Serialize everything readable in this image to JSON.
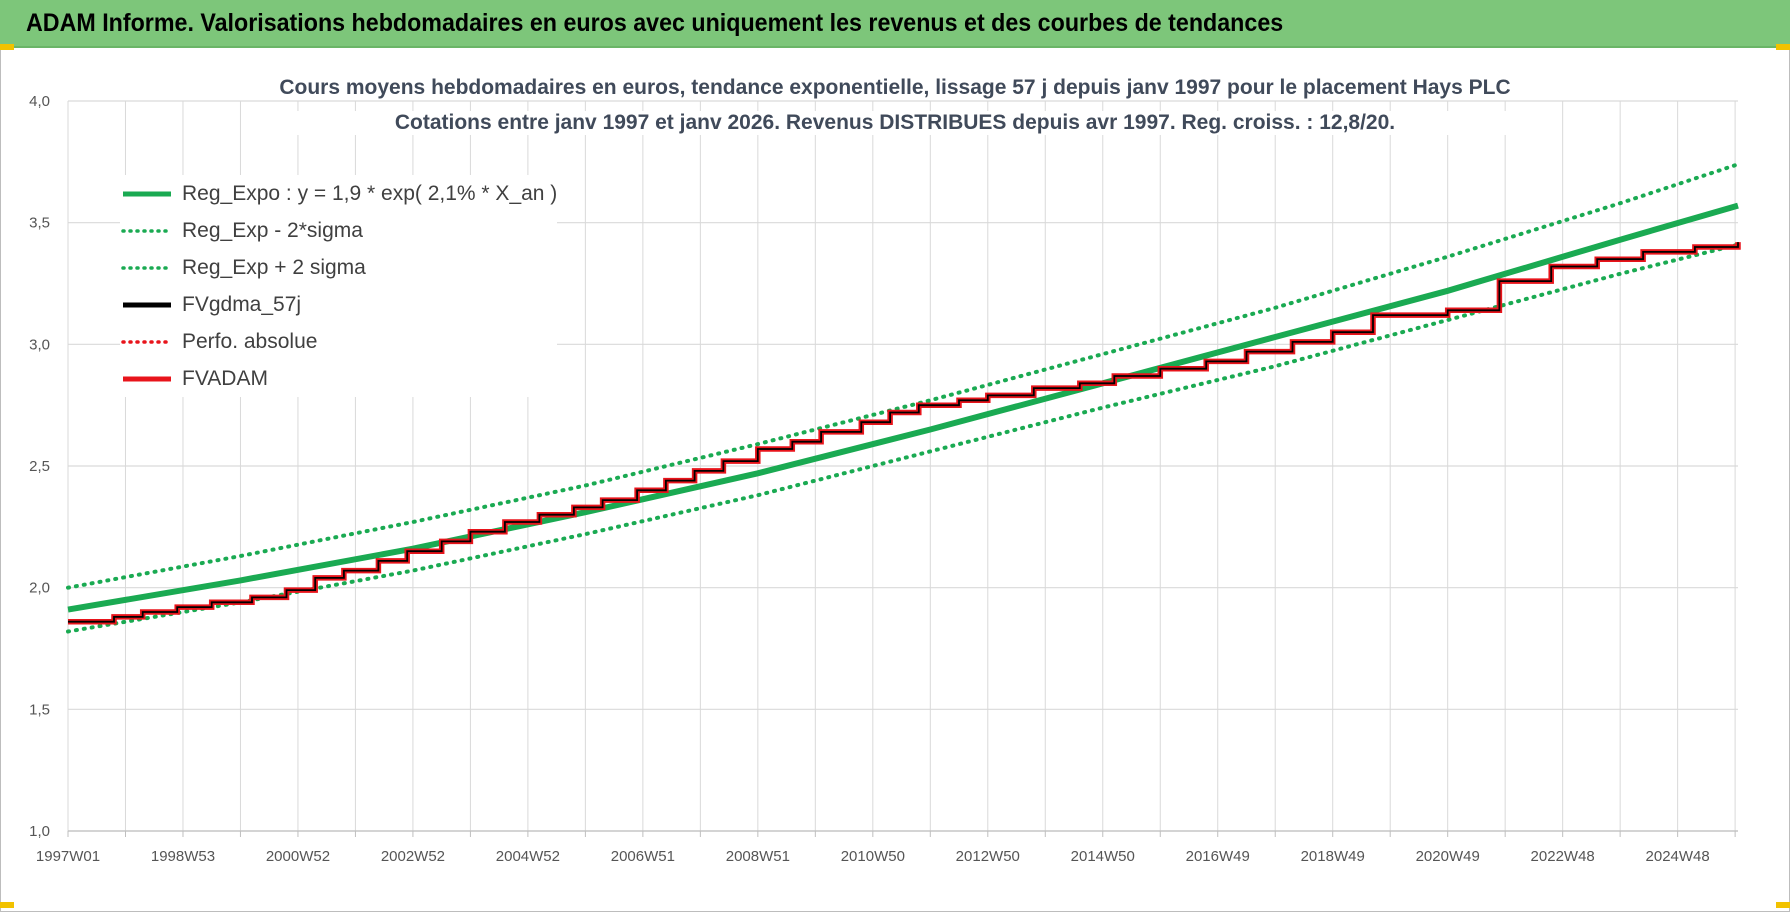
{
  "header": {
    "title": "ADAM Informe. Valorisations hebdomadaires en euros avec uniquement les revenus et des courbes de tendances"
  },
  "colors": {
    "banner": "#7dc67a",
    "trend_green": "#1aaa52",
    "adam_red": "#e8141b",
    "gdma_black": "#000000",
    "grid": "#d9d9d9"
  },
  "chart_data": {
    "type": "line",
    "title": "Cours moyens hebdomadaires en euros, tendance exponentielle, lissage 57 j depuis janv 1997 pour le placement Hays PLC",
    "subtitle": "Cotations entre janv 1997 et janv 2026. Revenus DISTRIBUES depuis avr 1997. Reg. croiss. : 12,8/20.",
    "ylim": [
      1.0,
      4.0
    ],
    "y_ticks": [
      "1,0",
      "1,5",
      "2,0",
      "2,5",
      "3,0",
      "3,5",
      "4,0"
    ],
    "y_tick_values": [
      1.0,
      1.5,
      2.0,
      2.5,
      3.0,
      3.5,
      4.0
    ],
    "xlim": [
      1997.0,
      2026.05
    ],
    "x_tick_labels": [
      "1997W01",
      "1998W53",
      "2000W52",
      "2002W52",
      "2004W52",
      "2006W51",
      "2008W51",
      "2010W50",
      "2012W50",
      "2014W50",
      "2016W49",
      "2018W49",
      "2020W49",
      "2022W48",
      "2024W48"
    ],
    "x_tick_values": [
      1997.0,
      1999.0,
      2001.0,
      2003.0,
      2005.0,
      2007.0,
      2009.0,
      2011.0,
      2013.0,
      2015.0,
      2017.0,
      2019.0,
      2021.0,
      2023.0,
      2025.0
    ],
    "grid": true,
    "legend_position": "top-left",
    "legend": [
      {
        "label": "Reg_Expo : y = 1,9 * exp( 2,1% *  X_an )",
        "style": "solid",
        "color": "#1aaa52"
      },
      {
        "label": "Reg_Exp - 2*sigma",
        "style": "dotted",
        "color": "#1aaa52"
      },
      {
        "label": "Reg_Exp + 2 sigma",
        "style": "dotted",
        "color": "#1aaa52"
      },
      {
        "label": "FVgdma_57j",
        "style": "solid",
        "color": "#000000"
      },
      {
        "label": "Perfo. absolue",
        "style": "dotted",
        "color": "#e8141b"
      },
      {
        "label": "FVADAM",
        "style": "solid",
        "color": "#e8141b"
      }
    ],
    "series": [
      {
        "name": "Reg_Expo : y = 1,9 * exp( 2,1% *  X_an )",
        "x": [
          1997.0,
          2000.0,
          2003.0,
          2006.0,
          2009.0,
          2012.0,
          2015.0,
          2018.0,
          2021.0,
          2024.0,
          2026.05
        ],
        "values": [
          1.91,
          2.03,
          2.16,
          2.31,
          2.47,
          2.65,
          2.84,
          3.03,
          3.22,
          3.43,
          3.57
        ]
      },
      {
        "name": "Reg_Exp - 2*sigma",
        "x": [
          1997.0,
          2000.0,
          2003.0,
          2006.0,
          2009.0,
          2012.0,
          2015.0,
          2018.0,
          2021.0,
          2024.0,
          2026.05
        ],
        "values": [
          1.82,
          1.94,
          2.07,
          2.22,
          2.38,
          2.56,
          2.74,
          2.91,
          3.1,
          3.29,
          3.41
        ]
      },
      {
        "name": "Reg_Exp + 2 sigma",
        "x": [
          1997.0,
          2000.0,
          2003.0,
          2006.0,
          2009.0,
          2012.0,
          2015.0,
          2018.0,
          2021.0,
          2024.0,
          2026.05
        ],
        "values": [
          2.0,
          2.13,
          2.27,
          2.42,
          2.59,
          2.77,
          2.96,
          3.15,
          3.36,
          3.58,
          3.74
        ]
      },
      {
        "name": "FVADAM",
        "x": [
          1997.0,
          1997.8,
          1998.3,
          1998.9,
          1999.5,
          2000.2,
          2000.8,
          2001.3,
          2001.8,
          2002.4,
          2002.9,
          2003.5,
          2004.0,
          2004.6,
          2005.2,
          2005.8,
          2006.3,
          2006.9,
          2007.4,
          2007.9,
          2008.4,
          2009.0,
          2009.6,
          2010.1,
          2010.8,
          2011.3,
          2011.8,
          2012.5,
          2013.0,
          2013.8,
          2014.6,
          2015.2,
          2016.0,
          2016.8,
          2017.5,
          2018.3,
          2019.0,
          2019.7,
          2021.0,
          2021.9,
          2022.8,
          2023.6,
          2024.4,
          2025.3,
          2026.05
        ],
        "values": [
          1.86,
          1.88,
          1.9,
          1.92,
          1.94,
          1.96,
          1.99,
          2.04,
          2.07,
          2.11,
          2.15,
          2.19,
          2.23,
          2.27,
          2.3,
          2.33,
          2.36,
          2.4,
          2.44,
          2.48,
          2.52,
          2.57,
          2.6,
          2.64,
          2.68,
          2.72,
          2.75,
          2.77,
          2.79,
          2.82,
          2.84,
          2.87,
          2.9,
          2.93,
          2.97,
          3.01,
          3.05,
          3.12,
          3.14,
          3.26,
          3.32,
          3.35,
          3.38,
          3.4,
          3.42
        ]
      },
      {
        "name": "FVgdma_57j",
        "x": [
          1997.0,
          1997.8,
          1998.3,
          1998.9,
          1999.5,
          2000.2,
          2000.8,
          2001.3,
          2001.8,
          2002.4,
          2002.9,
          2003.5,
          2004.0,
          2004.6,
          2005.2,
          2005.8,
          2006.3,
          2006.9,
          2007.4,
          2007.9,
          2008.4,
          2009.0,
          2009.6,
          2010.1,
          2010.8,
          2011.3,
          2011.8,
          2012.5,
          2013.0,
          2013.8,
          2014.6,
          2015.2,
          2016.0,
          2016.8,
          2017.5,
          2018.3,
          2019.0,
          2019.7,
          2021.0,
          2021.9,
          2022.8,
          2023.6,
          2024.4,
          2025.3,
          2026.05
        ],
        "values": [
          1.86,
          1.88,
          1.9,
          1.92,
          1.94,
          1.96,
          1.99,
          2.04,
          2.07,
          2.11,
          2.15,
          2.19,
          2.23,
          2.27,
          2.3,
          2.33,
          2.36,
          2.4,
          2.44,
          2.48,
          2.52,
          2.57,
          2.6,
          2.64,
          2.68,
          2.72,
          2.75,
          2.77,
          2.79,
          2.82,
          2.84,
          2.87,
          2.9,
          2.93,
          2.97,
          3.01,
          3.05,
          3.12,
          3.14,
          3.26,
          3.32,
          3.35,
          3.38,
          3.4,
          3.42
        ]
      }
    ]
  }
}
